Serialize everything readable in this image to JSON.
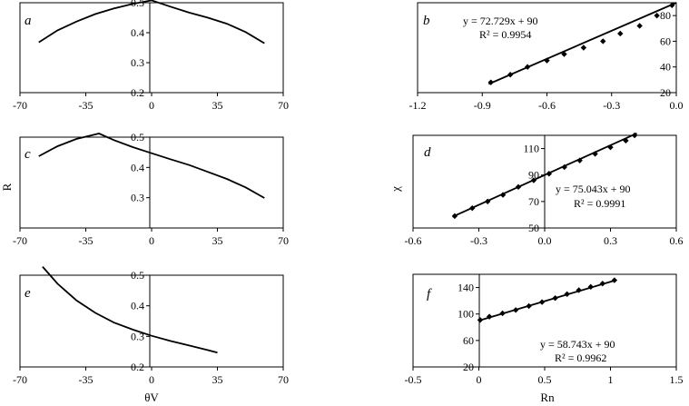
{
  "axis_labels": {
    "left_y": "R",
    "left_x": "θV",
    "right_y": "χ",
    "right_x": "Rn"
  },
  "chart_data": [
    {
      "panel": "a",
      "type": "line",
      "xlim": [
        -70,
        70
      ],
      "ylim": [
        0.2,
        0.5
      ],
      "xticks": [
        "-70",
        "-35",
        "0",
        "35",
        "70"
      ],
      "yticks": [
        "0.2",
        "0.3",
        "0.4",
        "0.5"
      ],
      "series": [
        {
          "x": [
            -60,
            -50,
            -40,
            -30,
            -20,
            -10,
            0,
            10,
            20,
            30,
            40,
            50,
            60
          ],
          "y": [
            0.368,
            0.408,
            0.437,
            0.462,
            0.481,
            0.496,
            0.508,
            0.487,
            0.467,
            0.45,
            0.43,
            0.402,
            0.365
          ]
        }
      ]
    },
    {
      "panel": "b",
      "type": "scatter",
      "xlim": [
        -1.2,
        0
      ],
      "ylim": [
        20,
        90
      ],
      "xticks": [
        "-1.2",
        "-0.9",
        "-0.6",
        "-0.3",
        "0.0"
      ],
      "yticks": [
        "20",
        "40",
        "60",
        "80"
      ],
      "equation": "y = 72.729x + 90",
      "r2": "R² = 0.9954",
      "points": {
        "x": [
          -0.86,
          -0.77,
          -0.69,
          -0.6,
          -0.52,
          -0.43,
          -0.34,
          -0.26,
          -0.17,
          -0.09,
          -0.02
        ],
        "y": [
          28,
          34,
          40,
          45,
          50,
          55,
          60,
          66,
          72,
          80,
          88
        ]
      },
      "trendline": {
        "slope": 72.729,
        "intercept": 90,
        "x": [
          -0.87,
          0
        ]
      }
    },
    {
      "panel": "c",
      "type": "line",
      "xlim": [
        -70,
        70
      ],
      "ylim": [
        0.2,
        0.5
      ],
      "xticks": [
        "-70",
        "-35",
        "0",
        "35",
        "70"
      ],
      "yticks": [
        "0.3",
        "0.4",
        "0.5"
      ],
      "series": [
        {
          "x": [
            -60,
            -50,
            -40,
            -30,
            -28,
            -20,
            -10,
            0,
            10,
            20,
            30,
            40,
            50,
            60
          ],
          "y": [
            0.437,
            0.47,
            0.494,
            0.509,
            0.512,
            0.49,
            0.467,
            0.447,
            0.427,
            0.408,
            0.385,
            0.362,
            0.334,
            0.299
          ]
        }
      ]
    },
    {
      "panel": "d",
      "type": "scatter",
      "xlim": [
        -0.6,
        0.6
      ],
      "ylim": [
        50,
        120
      ],
      "xticks": [
        "-0.6",
        "-0.3",
        "0.0",
        "0.3",
        "0.6"
      ],
      "yticks": [
        "50",
        "70",
        "90",
        "110"
      ],
      "equation": "y = 75.043x + 90",
      "r2": "R² = 0.9991",
      "points": {
        "x": [
          -0.41,
          -0.33,
          -0.26,
          -0.19,
          -0.12,
          -0.05,
          0.02,
          0.09,
          0.16,
          0.23,
          0.3,
          0.37,
          0.41
        ],
        "y": [
          59,
          65,
          70,
          75,
          81,
          86,
          91,
          96,
          101,
          106,
          111,
          116,
          120
        ]
      },
      "trendline": {
        "slope": 75.043,
        "intercept": 90,
        "x": [
          -0.42,
          0.42
        ]
      }
    },
    {
      "panel": "e",
      "type": "line",
      "xlim": [
        -70,
        70
      ],
      "ylim": [
        0.2,
        0.5
      ],
      "xticks": [
        "-70",
        "-35",
        "0",
        "35",
        "70"
      ],
      "yticks": [
        "0.2",
        "0.3",
        "0.4",
        "0.5"
      ],
      "series": [
        {
          "x": [
            -58,
            -50,
            -40,
            -30,
            -20,
            -10,
            0,
            10,
            20,
            30,
            35
          ],
          "y": [
            0.528,
            0.472,
            0.418,
            0.377,
            0.345,
            0.322,
            0.302,
            0.285,
            0.27,
            0.255,
            0.247
          ]
        }
      ]
    },
    {
      "panel": "f",
      "type": "scatter",
      "xlim": [
        -0.5,
        1.5
      ],
      "ylim": [
        20,
        160
      ],
      "xticks": [
        "-0.5",
        "0",
        "0.5",
        "1",
        "1.5"
      ],
      "yticks": [
        "20",
        "60",
        "100",
        "140"
      ],
      "equation": "y = 58.743x + 90",
      "r2": "R² = 0.9962",
      "points": {
        "x": [
          0.01,
          0.08,
          0.18,
          0.28,
          0.38,
          0.48,
          0.58,
          0.67,
          0.76,
          0.85,
          0.94,
          1.03
        ],
        "y": [
          91,
          96,
          101,
          106,
          112,
          118,
          124,
          130,
          136,
          141,
          146,
          151
        ]
      },
      "trendline": {
        "slope": 58.743,
        "intercept": 90,
        "x": [
          0,
          1.04
        ]
      }
    }
  ]
}
